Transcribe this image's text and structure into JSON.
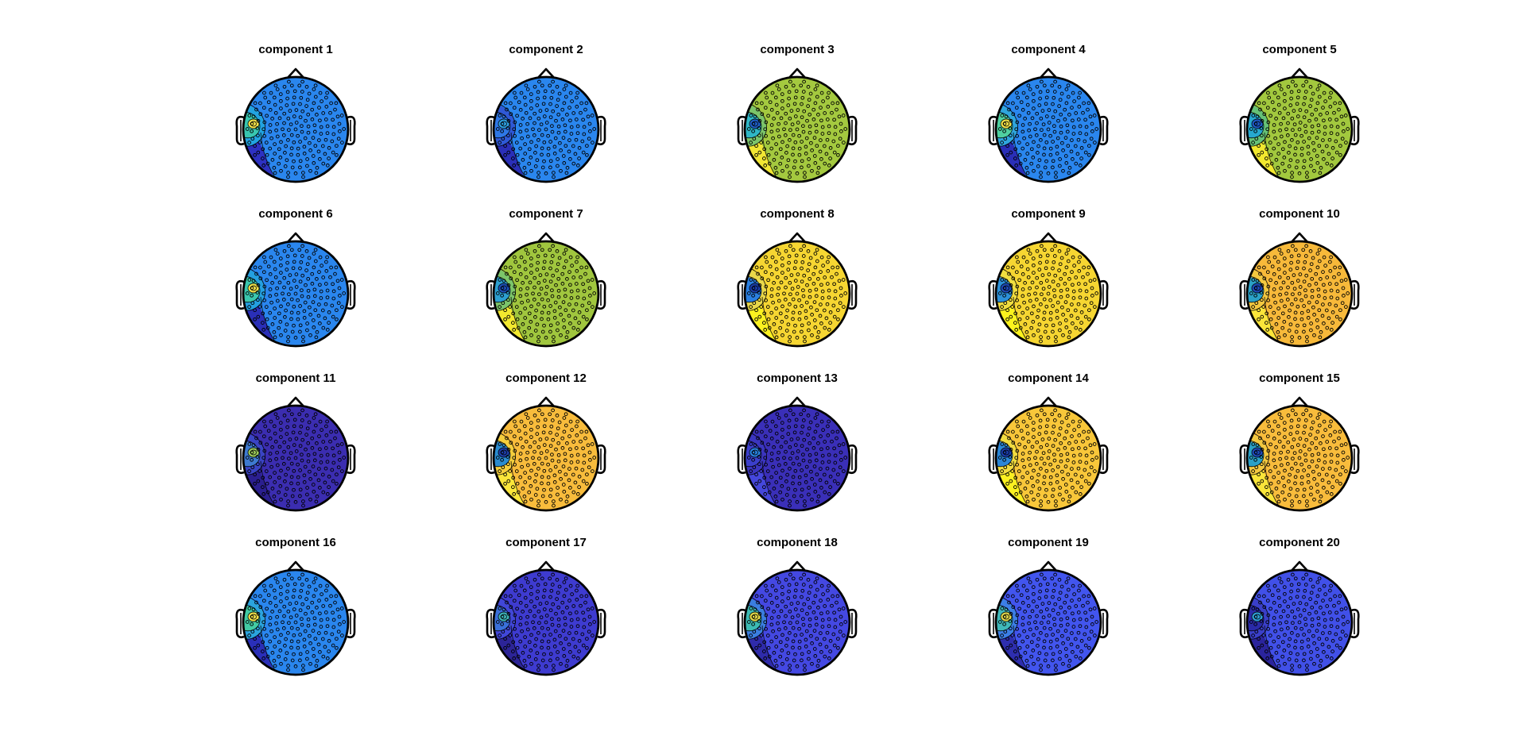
{
  "chart_data": {
    "type": "topoplot",
    "layout": {
      "rows": 4,
      "cols": 5
    },
    "components": [
      {
        "title": "component 1",
        "base_color": "#2A86EE",
        "focus": {
          "inner": "#F2E24A",
          "mid": "#38C6B0",
          "outer": "#22A3E0",
          "tail": "#2D2CBF"
        }
      },
      {
        "title": "component 2",
        "base_color": "#2A86EE",
        "focus": {
          "inner": "#2F9FE0",
          "mid": "#2E77E6",
          "outer": "#2F59D6",
          "tail": "#2A2AB4"
        }
      },
      {
        "title": "component 3",
        "base_color": "#A4C93F",
        "focus": {
          "inner": "#1F5FC8",
          "mid": "#2FB7C6",
          "outer": "#7CC56A",
          "tail": "#F5E833"
        }
      },
      {
        "title": "component 4",
        "base_color": "#2A86EE",
        "focus": {
          "inner": "#F2E24A",
          "mid": "#4FD0A0",
          "outer": "#2FA6DD",
          "tail": "#2A2AB4"
        }
      },
      {
        "title": "component 5",
        "base_color": "#A2C83E",
        "focus": {
          "inner": "#1E58C5",
          "mid": "#26A8CF",
          "outer": "#66C277",
          "tail": "#F7EA2E"
        }
      },
      {
        "title": "component 6",
        "base_color": "#2A86EE",
        "focus": {
          "inner": "#F2E24A",
          "mid": "#3AC7AE",
          "outer": "#24A0E0",
          "tail": "#2A2AB4"
        }
      },
      {
        "title": "component 7",
        "base_color": "#A0C63E",
        "focus": {
          "inner": "#1C4FB8",
          "mid": "#2C9FD0",
          "outer": "#7CC56A",
          "tail": "#F7EA2E"
        }
      },
      {
        "title": "component 8",
        "base_color": "#F6D632",
        "focus": {
          "inner": "#1A3DAA",
          "mid": "#2A7FE0",
          "outer": "#E9D84A",
          "tail": "#FAF220"
        }
      },
      {
        "title": "component 9",
        "base_color": "#F6D632",
        "focus": {
          "inner": "#1E4ABA",
          "mid": "#2C90D8",
          "outer": "#F0DE40",
          "tail": "#FBF41E"
        }
      },
      {
        "title": "component 10",
        "base_color": "#F7B93A",
        "focus": {
          "inner": "#1E4ABA",
          "mid": "#2AA0C6",
          "outer": "#F3C840",
          "tail": "#FAE73A"
        }
      },
      {
        "title": "component 11",
        "base_color": "#3B2DB0",
        "focus": {
          "inner": "#9BC95A",
          "mid": "#3E7AD0",
          "outer": "#3A44C4",
          "tail": "#2A1F8E"
        }
      },
      {
        "title": "component 12",
        "base_color": "#F8BC3C",
        "focus": {
          "inner": "#1E3EA8",
          "mid": "#2A8BD0",
          "outer": "#F5CE3C",
          "tail": "#FAE83A"
        }
      },
      {
        "title": "component 13",
        "base_color": "#3A2FB8",
        "focus": {
          "inner": "#2A83E0",
          "mid": "#3B3FCB",
          "outer": "#3B35BF",
          "tail": "#4649DD"
        }
      },
      {
        "title": "component 14",
        "base_color": "#F8C73A",
        "focus": {
          "inner": "#1A3DAA",
          "mid": "#2B86D6",
          "outer": "#F2DC40",
          "tail": "#FBF220"
        }
      },
      {
        "title": "component 15",
        "base_color": "#F8BC3C",
        "focus": {
          "inner": "#1E4ABA",
          "mid": "#2AA0C6",
          "outer": "#F3C840",
          "tail": "#FAE73A"
        }
      },
      {
        "title": "component 16",
        "base_color": "#2A86EE",
        "focus": {
          "inner": "#F0E04A",
          "mid": "#42CBA4",
          "outer": "#2BA4DE",
          "tail": "#2A2AB4"
        }
      },
      {
        "title": "component 17",
        "base_color": "#3E3BD0",
        "focus": {
          "inner": "#3FB4B8",
          "mid": "#3A70DA",
          "outer": "#4147D8",
          "tail": "#2B2394"
        }
      },
      {
        "title": "component 18",
        "base_color": "#4448E2",
        "focus": {
          "inner": "#E5DA48",
          "mid": "#3CBBB4",
          "outer": "#3B7EE0",
          "tail": "#2E2AA6"
        }
      },
      {
        "title": "component 19",
        "base_color": "#4255EE",
        "focus": {
          "inner": "#E0D64A",
          "mid": "#40B8BA",
          "outer": "#3C7FE6",
          "tail": "#2D2CAA"
        }
      },
      {
        "title": "component 20",
        "base_color": "#4150E8",
        "focus": {
          "inner": "#2F9FD6",
          "mid": "#2A2AA8",
          "outer": "#3A3FC9",
          "tail": "#2A2299"
        }
      }
    ]
  }
}
